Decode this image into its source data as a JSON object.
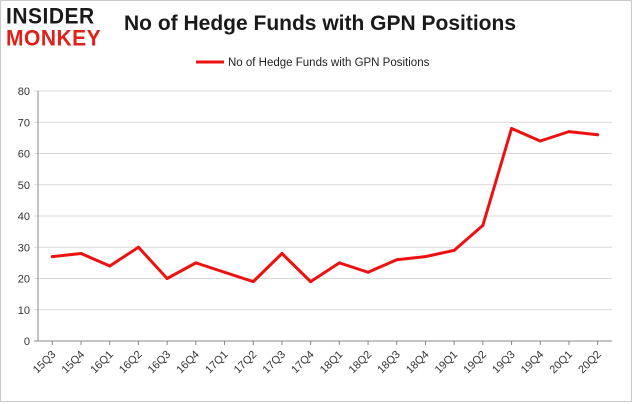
{
  "header": {
    "logo_line1": "INSIDER",
    "logo_line2": "MONKEY",
    "title": "No of Hedge Funds with GPN Positions"
  },
  "chart_data": {
    "type": "line",
    "title": "No of Hedge Funds with GPN Positions",
    "xlabel": "",
    "ylabel": "",
    "categories": [
      "15Q3",
      "15Q4",
      "16Q1",
      "16Q2",
      "16Q3",
      "16Q4",
      "17Q1",
      "17Q2",
      "17Q3",
      "17Q4",
      "18Q1",
      "18Q2",
      "18Q3",
      "18Q4",
      "19Q1",
      "19Q2",
      "19Q3",
      "19Q4",
      "20Q1",
      "20Q2"
    ],
    "series": [
      {
        "name": "No of Hedge Funds with GPN Positions",
        "color": "#ee1111",
        "values": [
          27,
          28,
          24,
          30,
          20,
          25,
          22,
          19,
          28,
          19,
          25,
          22,
          26,
          27,
          29,
          37,
          68,
          64,
          67,
          66
        ]
      }
    ],
    "ylim": [
      0,
      80
    ],
    "yticks": [
      0,
      10,
      20,
      30,
      40,
      50,
      60,
      70,
      80
    ],
    "grid": true,
    "legend_position": "top-center"
  }
}
